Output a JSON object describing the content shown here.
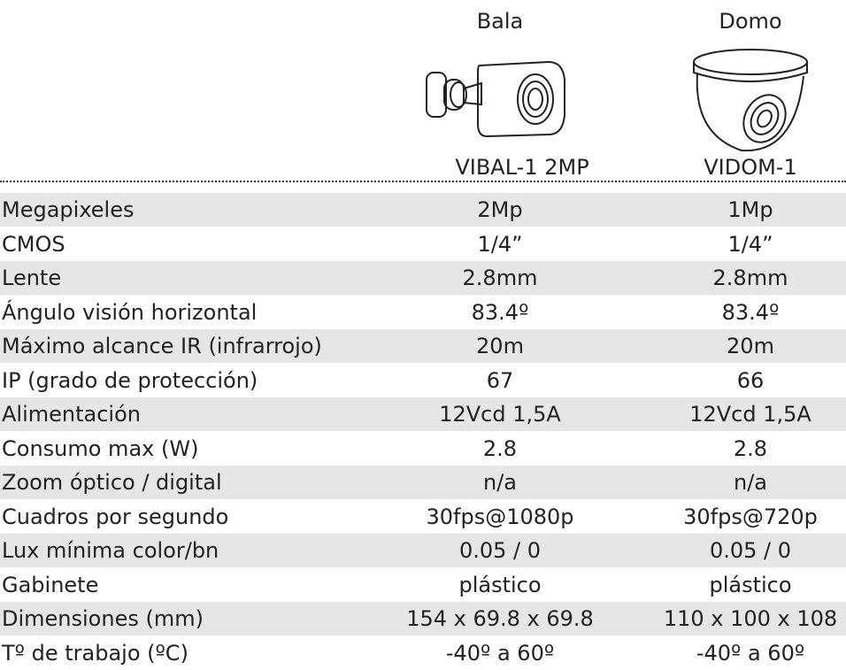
{
  "header": {
    "columns": [
      "Bala",
      "Domo"
    ],
    "models": [
      "VIBAL-1 2MP",
      "VIDOM-1"
    ]
  },
  "table": {
    "rows": [
      [
        "Megapixeles",
        "2Mp",
        "1Mp"
      ],
      [
        "CMOS",
        "1/4”",
        "1/4”"
      ],
      [
        "Lente",
        "2.8mm",
        "2.8mm"
      ],
      [
        "Ángulo visión horizontal",
        "83.4º",
        "83.4º"
      ],
      [
        "Máximo alcance IR (infrarrojo)",
        "20m",
        "20m"
      ],
      [
        "IP (grado de protección)",
        "67",
        "66"
      ],
      [
        "Alimentación",
        "12Vcd 1,5A",
        "12Vcd 1,5A"
      ],
      [
        "Consumo max (W)",
        "2.8",
        "2.8"
      ],
      [
        "Zoom óptico / digital",
        "n/a",
        "n/a"
      ],
      [
        "Cuadros por segundo",
        "30fps@1080p",
        "30fps@720p"
      ],
      [
        "Lux mínima color/bn",
        "0.05 / 0",
        "0.05 / 0"
      ],
      [
        "Gabinete",
        "plástico",
        "plástico"
      ],
      [
        "Dimensiones (mm)",
        "154 x 69.8 x 69.8",
        "110 x 100 x 108"
      ],
      [
        "Tº de trabajo (ºC)",
        "-40º a 60º",
        "-40º a 60º"
      ]
    ]
  }
}
